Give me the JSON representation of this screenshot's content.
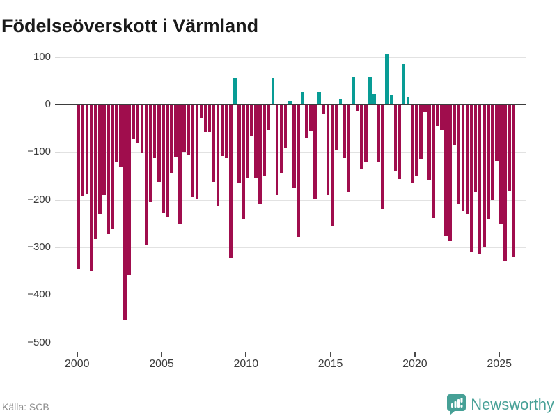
{
  "title": "Födelseöverskott i Värmland",
  "source": "Källa: SCB",
  "brand": {
    "name": "Newsworthy",
    "logo_icon": "speech-bubble-bar-chart"
  },
  "colors": {
    "negative_bar": "#a00d4d",
    "positive_bar": "#089c95",
    "axis_line": "#3d3d3d",
    "gridline": "#e2e2e2",
    "brand_teal": "#46a096",
    "title_text": "#1a1a1a",
    "tick_text": "#3c3c3c",
    "source_text": "#8c8c8c"
  },
  "chart_data": {
    "type": "bar",
    "title": "Födelseöverskott i Värmland",
    "xlabel": "",
    "ylabel": "",
    "x_start": "2000 Q1",
    "x_end": "2025 Q4",
    "frequency": "quarterly",
    "ylim": [
      -500,
      100
    ],
    "grid": "horizontal",
    "legend": "none",
    "y_ticks": [
      100,
      0,
      -100,
      -200,
      -300,
      -400,
      -500
    ],
    "x_ticks": [
      2000,
      2005,
      2010,
      2015,
      2020,
      2025
    ],
    "x_tick_labels": [
      "2000",
      "2005",
      "2010",
      "2015",
      "2020",
      "2025"
    ],
    "values": [
      -345,
      -193,
      -189,
      -350,
      -283,
      -230,
      -190,
      -272,
      -260,
      -122,
      -131,
      -452,
      -358,
      -71,
      -80,
      -102,
      -295,
      -205,
      -113,
      -162,
      -229,
      -236,
      -144,
      -110,
      -250,
      -100,
      -105,
      -194,
      -197,
      -30,
      -58,
      -57,
      -163,
      -214,
      -108,
      -113,
      -322,
      56,
      -164,
      -242,
      -153,
      -66,
      -153,
      -209,
      -151,
      -53,
      56,
      -190,
      -143,
      -91,
      8,
      -175,
      -278,
      26,
      -70,
      -55,
      -199,
      27,
      -20,
      -190,
      -255,
      -95,
      11,
      -112,
      -185,
      57,
      -13,
      -134,
      -122,
      57,
      22,
      -120,
      -219,
      105,
      19,
      -139,
      -156,
      85,
      16,
      -166,
      -149,
      -114,
      -16,
      -159,
      -238,
      -45,
      -53,
      -276,
      -287,
      -85,
      -210,
      -224,
      -230,
      -310,
      -185,
      -315,
      -300,
      -240,
      -200,
      -119,
      -250,
      -330,
      -182,
      -320
    ]
  }
}
